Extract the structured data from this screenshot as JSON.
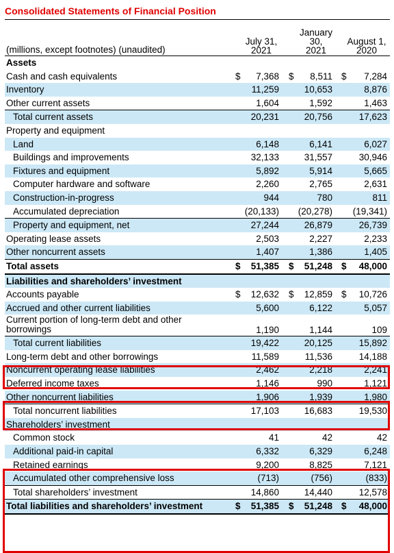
{
  "title": "Consolidated Statements of Financial Position",
  "header": {
    "units": "(millions, except footnotes) (unaudited)",
    "columns": [
      "July 31,\n2021",
      "January\n30,\n2021",
      "August 1,\n2020"
    ]
  },
  "rows": [
    {
      "label": "Assets",
      "style": "section"
    },
    {
      "label": "Cash and cash equivalents",
      "values": [
        "7,368",
        "8,511",
        "7,284"
      ],
      "dollar": true
    },
    {
      "label": "Inventory",
      "values": [
        "11,259",
        "10,653",
        "8,876"
      ],
      "blue": true
    },
    {
      "label": "Other current assets",
      "values": [
        "1,604",
        "1,592",
        "1,463"
      ]
    },
    {
      "label": "Total current assets",
      "values": [
        "20,231",
        "20,756",
        "17,623"
      ],
      "indent": true,
      "blue": true,
      "rule": "top"
    },
    {
      "label": "Property and equipment"
    },
    {
      "label": "Land",
      "values": [
        "6,148",
        "6,141",
        "6,027"
      ],
      "indent": true,
      "blue": true
    },
    {
      "label": "Buildings and improvements",
      "values": [
        "32,133",
        "31,557",
        "30,946"
      ],
      "indent": true
    },
    {
      "label": "Fixtures and equipment",
      "values": [
        "5,892",
        "5,914",
        "5,665"
      ],
      "indent": true,
      "blue": true
    },
    {
      "label": "Computer hardware and software",
      "values": [
        "2,260",
        "2,765",
        "2,631"
      ],
      "indent": true
    },
    {
      "label": "Construction-in-progress",
      "values": [
        "944",
        "780",
        "811"
      ],
      "indent": true,
      "blue": true
    },
    {
      "label": "Accumulated depreciation",
      "values": [
        "(20,133)",
        "(20,278)",
        "(19,341)"
      ],
      "indent": true
    },
    {
      "label": "Property and equipment, net",
      "values": [
        "27,244",
        "26,879",
        "26,739"
      ],
      "indent": true,
      "blue": true,
      "rule": "top"
    },
    {
      "label": "Operating lease assets",
      "values": [
        "2,503",
        "2,227",
        "2,233"
      ]
    },
    {
      "label": "Other noncurrent assets",
      "values": [
        "1,407",
        "1,386",
        "1,405"
      ],
      "blue": true
    },
    {
      "label": "Total assets",
      "values": [
        "51,385",
        "51,248",
        "48,000"
      ],
      "dollar": true,
      "bold": true,
      "rule": "top-bottom"
    },
    {
      "label": "Liabilities and shareholders’ investment",
      "style": "section",
      "blue": true
    },
    {
      "label": "Accounts payable",
      "values": [
        "12,632",
        "12,859",
        "10,726"
      ],
      "dollar": true
    },
    {
      "label": "Accrued and other current liabilities",
      "values": [
        "5,600",
        "6,122",
        "5,057"
      ],
      "blue": true
    },
    {
      "label": "Current portion of long-term debt and other borrowings",
      "values": [
        "1,190",
        "1,144",
        "109"
      ],
      "tall": true
    },
    {
      "label": "Total current liabilities",
      "values": [
        "19,422",
        "20,125",
        "15,892"
      ],
      "indent": true,
      "blue": true,
      "rule": "top"
    },
    {
      "label": "Long-term debt and other borrowings",
      "values": [
        "11,589",
        "11,536",
        "14,188"
      ]
    },
    {
      "label": "Noncurrent operating lease liabilities",
      "values": [
        "2,462",
        "2,218",
        "2,241"
      ],
      "blue": true
    },
    {
      "label": "Deferred income taxes",
      "values": [
        "1,146",
        "990",
        "1,121"
      ]
    },
    {
      "label": "Other noncurrent liabilities",
      "values": [
        "1,906",
        "1,939",
        "1,980"
      ],
      "blue": true
    },
    {
      "label": "Total noncurrent liabilities",
      "values": [
        "17,103",
        "16,683",
        "19,530"
      ],
      "indent": true,
      "rule": "top"
    },
    {
      "label": "Shareholders’ investment",
      "blue": true
    },
    {
      "label": "Common stock",
      "values": [
        "41",
        "42",
        "42"
      ],
      "indent": true
    },
    {
      "label": "Additional paid-in capital",
      "values": [
        "6,332",
        "6,329",
        "6,248"
      ],
      "indent": true,
      "blue": true
    },
    {
      "label": "Retained earnings",
      "values": [
        "9,200",
        "8,825",
        "7,121"
      ],
      "indent": true
    },
    {
      "label": "Accumulated other comprehensive loss",
      "values": [
        "(713)",
        "(756)",
        "(833)"
      ],
      "indent": true,
      "blue": true
    },
    {
      "label": "Total shareholders’ investment",
      "values": [
        "14,860",
        "14,440",
        "12,578"
      ],
      "indent": true,
      "rule": "top"
    },
    {
      "label": "Total liabilities and shareholders’ investment",
      "values": [
        "51,385",
        "51,248",
        "48,000"
      ],
      "dollar": true,
      "bold": true,
      "blue": true,
      "rule": "top-bottom"
    }
  ],
  "dollar_sign": "$",
  "colors": {
    "highlight": "#e00000",
    "stripe": "#cce8f6",
    "title": "#e00000"
  }
}
